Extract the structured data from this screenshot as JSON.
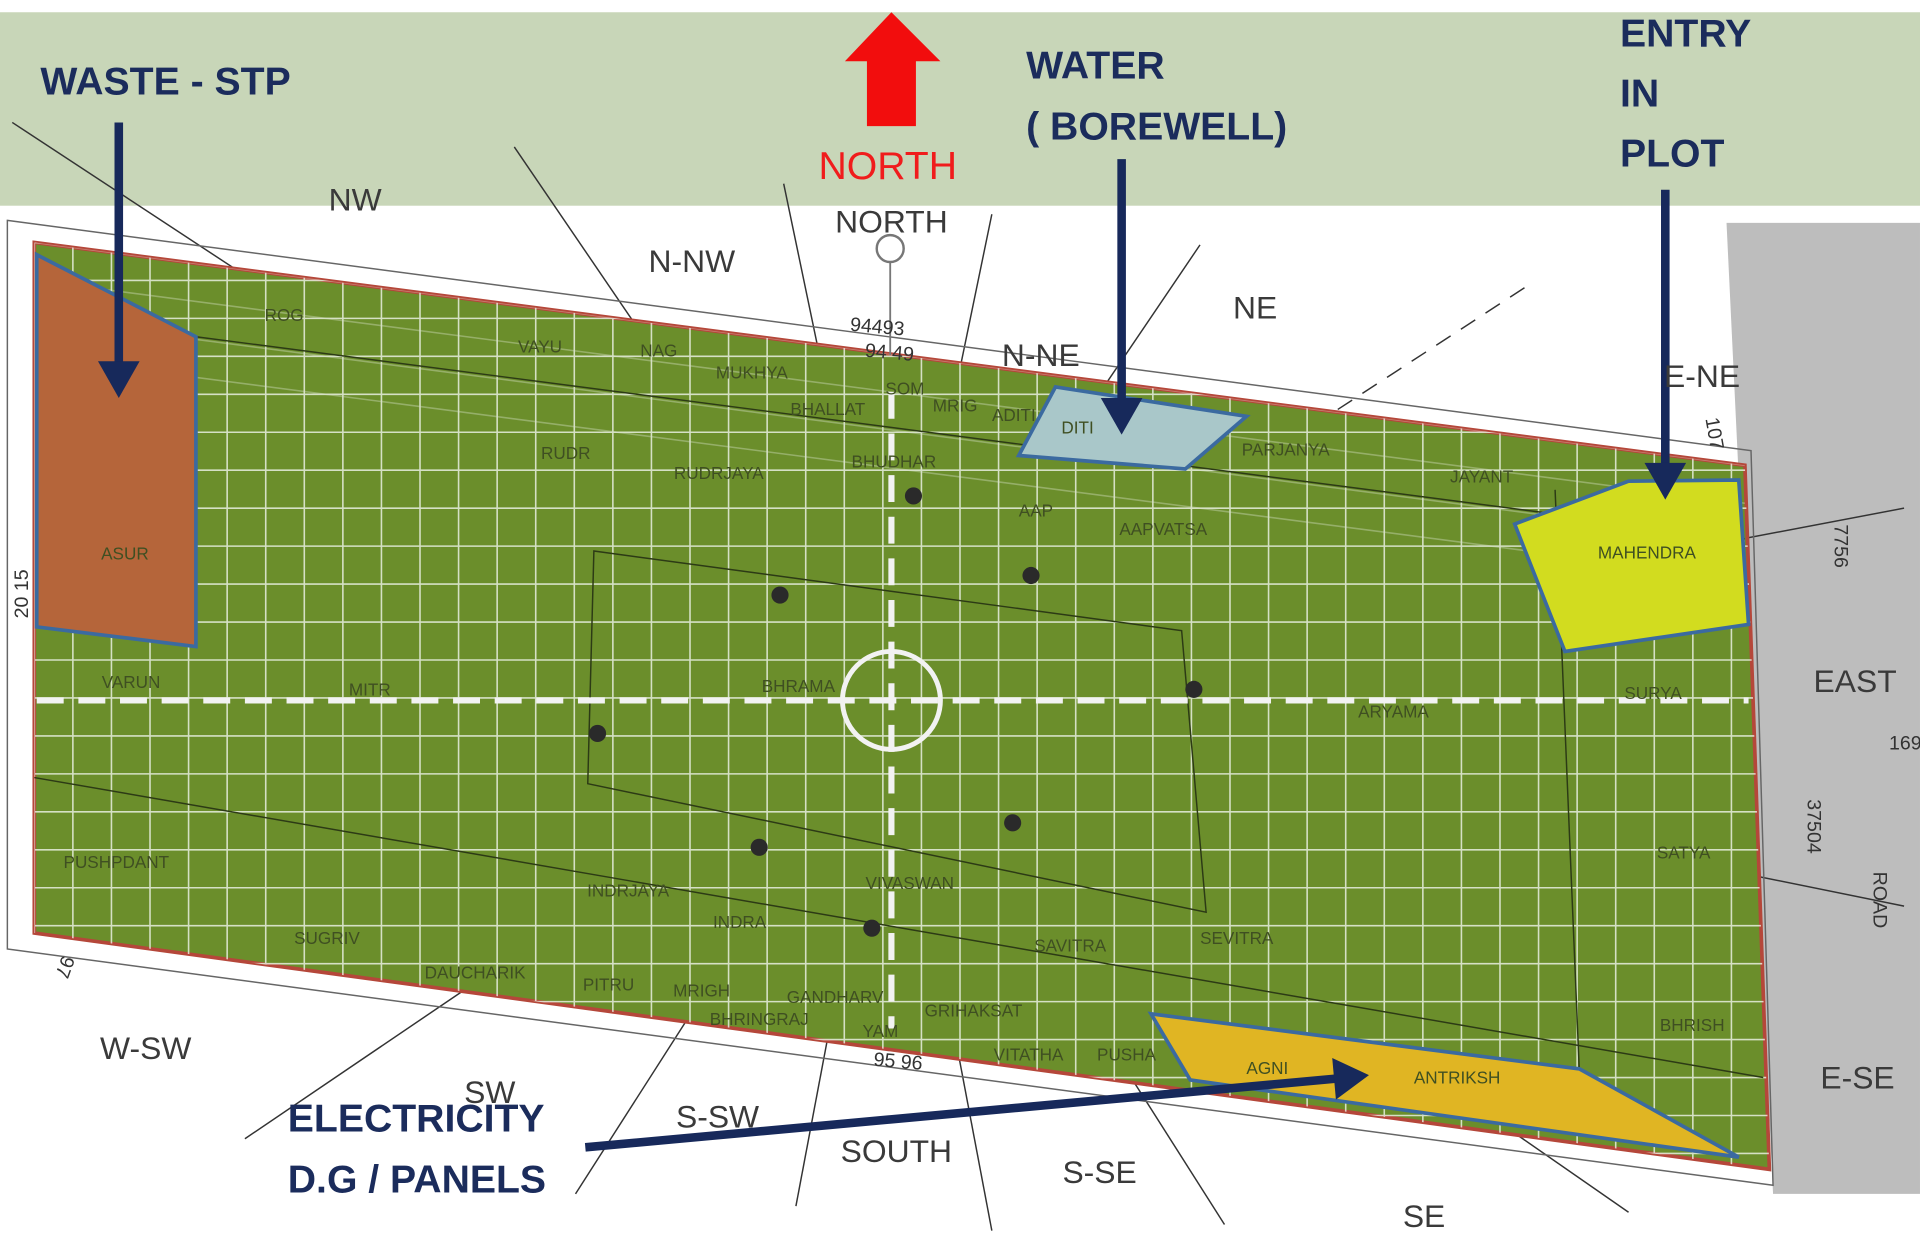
{
  "callouts": {
    "waste": {
      "lines": [
        "WASTE - STP"
      ]
    },
    "water": {
      "lines": [
        "WATER",
        "( BOREWELL)"
      ]
    },
    "entry": {
      "lines": [
        "ENTRY",
        "IN",
        "PLOT"
      ]
    },
    "electricity": {
      "lines": [
        "ELECTRICITY",
        "D.G / PANELS"
      ]
    }
  },
  "north_marker": "NORTH",
  "directions": [
    "NW",
    "N-NW",
    "NORTH",
    "N-NE",
    "NE",
    "E-NE",
    "EAST",
    "E-SE",
    "SE",
    "S-SE",
    "SOUTH",
    "S-SW",
    "SW",
    "W-SW"
  ],
  "zones": [
    "ROG",
    "VAYU",
    "NAG",
    "MUKHYA",
    "BHALLAT",
    "SOM",
    "MRIG",
    "ADITI",
    "DITI",
    "PARJANYA",
    "JAYANT",
    "MAHENDRA",
    "RUDR",
    "RUDRJAYA",
    "BHUDHAR",
    "AAP",
    "AAPVATSA",
    "ASUR",
    "VARUN",
    "MITR",
    "BHRAMA",
    "ARYAMA",
    "SURYA",
    "PUSHPDANT",
    "SATYA",
    "INDRJAYA",
    "VIVASWAN",
    "INDRA",
    "SAVITRA",
    "SEVITRA",
    "SUGRIV",
    "DAUCHARIK",
    "PITRU",
    "MRIGH",
    "GANDHARV",
    "GRIHAKSAT",
    "BHRINGRAJ",
    "YAM",
    "VITATHA",
    "PUSHA",
    "AGNI",
    "ANTRIKSH",
    "BHRISH"
  ],
  "dimensions": [
    "94493",
    "94 49",
    "95 96",
    "20 15",
    "107",
    "7756",
    "37504",
    "169",
    "97",
    "ROAD"
  ]
}
